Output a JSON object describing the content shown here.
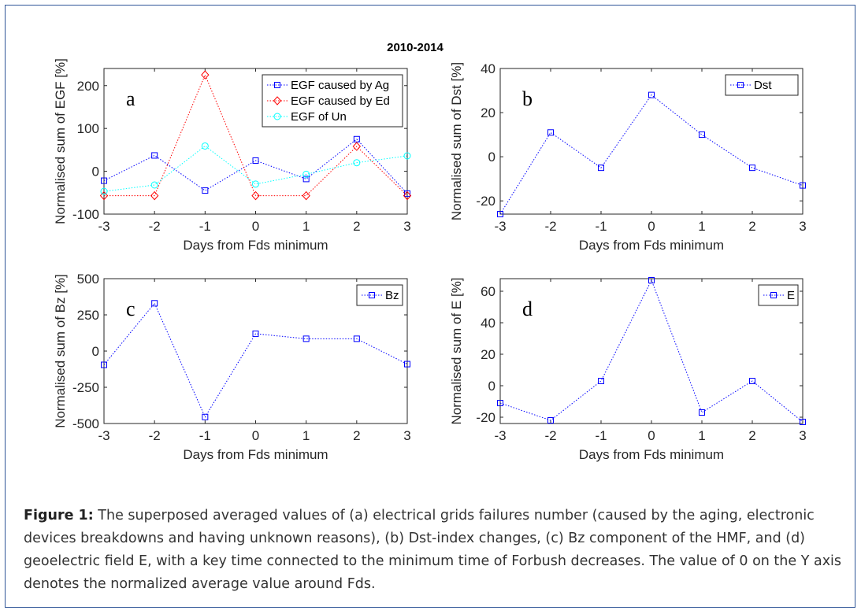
{
  "figure_title": "2010-2014",
  "caption": {
    "label": "Figure 1:",
    "text": " The superposed averaged values of (a) electrical grids failures number (caused by the aging, electronic devices breakdowns and having unknown reasons), (b) Dst-index changes, (c) Bz component of the HMF, and (d) geoelectric field E, with a key time connected to the minimum time of Forbush decreases. The value of 0 on the Y axis denotes the normalized average value around Fds."
  },
  "colors": {
    "blue": "#0000ff",
    "red": "#ff0000",
    "cyan": "#00ffff",
    "frame": "#2f5597"
  },
  "chart_data": [
    {
      "type": "line",
      "panel": "a",
      "xlabel": "Days from Fds minimum",
      "ylabel": "Normalised sum of EGF [%]",
      "x": [
        -3,
        -2,
        -1,
        0,
        1,
        2,
        3
      ],
      "xlim": [
        -3,
        3
      ],
      "ylim": [
        -100,
        240
      ],
      "yticks": [
        -100,
        0,
        100,
        200
      ],
      "legend_position": "top-right",
      "series": [
        {
          "name": "EGF caused by Ag",
          "color": "#0000ff",
          "marker": "square",
          "values": [
            -22,
            37,
            -45,
            25,
            -18,
            75,
            -52
          ]
        },
        {
          "name": "EGF caused by Ed",
          "color": "#ff0000",
          "marker": "diamond",
          "values": [
            -57,
            -57,
            225,
            -57,
            -57,
            58,
            -57
          ]
        },
        {
          "name": "EGF of Un",
          "color": "#00ffff",
          "marker": "circle",
          "values": [
            -47,
            -32,
            59,
            -30,
            -7,
            20,
            36
          ]
        }
      ]
    },
    {
      "type": "line",
      "panel": "b",
      "xlabel": "Days from Fds minimum",
      "ylabel": "Normalised sum of Dst [%]",
      "x": [
        -3,
        -2,
        -1,
        0,
        1,
        2,
        3
      ],
      "xlim": [
        -3,
        3
      ],
      "ylim": [
        -26,
        40
      ],
      "yticks": [
        -20,
        0,
        20,
        40
      ],
      "legend_position": "top-right",
      "series": [
        {
          "name": "Dst",
          "color": "#0000ff",
          "marker": "square",
          "values": [
            -26,
            11,
            -5,
            28,
            10,
            -5,
            -13
          ]
        }
      ]
    },
    {
      "type": "line",
      "panel": "c",
      "xlabel": "Days from Fds minimum",
      "ylabel": "Normalised sum of Bz [%]",
      "x": [
        -3,
        -2,
        -1,
        0,
        1,
        2,
        3
      ],
      "xlim": [
        -3,
        3
      ],
      "ylim": [
        -500,
        500
      ],
      "yticks": [
        -500,
        -250,
        0,
        250,
        500
      ],
      "legend_position": "top-right",
      "series": [
        {
          "name": "Bz",
          "color": "#0000ff",
          "marker": "square",
          "values": [
            -95,
            330,
            -455,
            120,
            85,
            85,
            -90
          ]
        }
      ]
    },
    {
      "type": "line",
      "panel": "d",
      "xlabel": "Days from Fds minimum",
      "ylabel": "Normalised sum of E [%]",
      "x": [
        -3,
        -2,
        -1,
        0,
        1,
        2,
        3
      ],
      "xlim": [
        -3,
        3
      ],
      "ylim": [
        -24,
        68
      ],
      "yticks": [
        -20,
        0,
        20,
        40,
        60
      ],
      "legend_position": "top-right",
      "series": [
        {
          "name": "E",
          "color": "#0000ff",
          "marker": "square",
          "values": [
            -11,
            -22,
            3,
            67,
            -17,
            3,
            -23
          ]
        }
      ]
    }
  ]
}
